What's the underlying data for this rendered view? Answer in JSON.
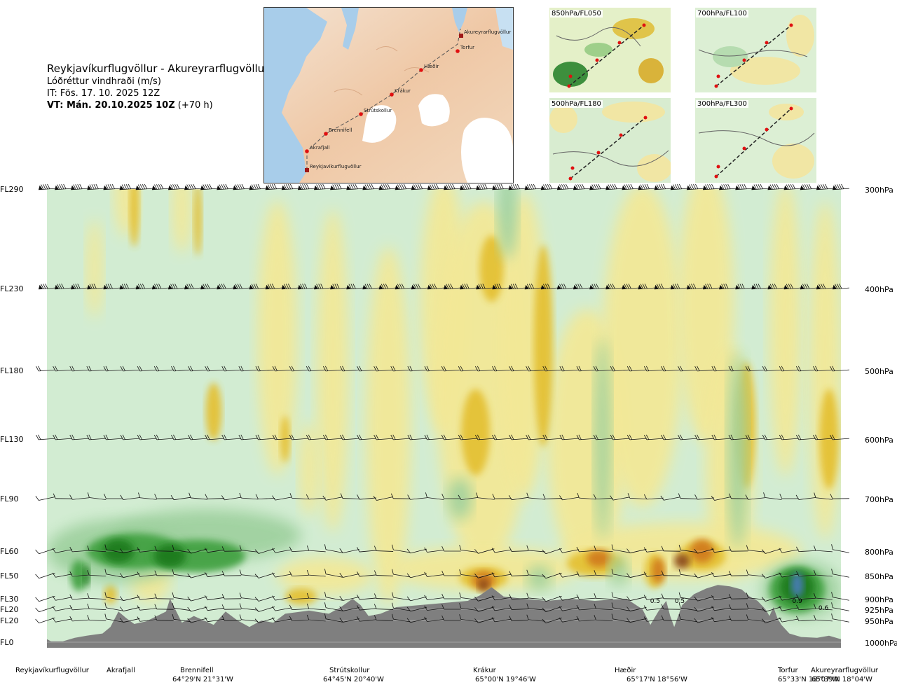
{
  "header": {
    "route": "Reykjavíkurflugvöllur - Akureyrarflugvöllur",
    "parameter": "Lóðréttur vindhraði (m/s)",
    "issue_time": "IT: Fös. 17. 10. 2025 12Z",
    "valid_time_bold": "VT: Mán. 20.10.2025 10Z",
    "valid_offset": "(+70 h)"
  },
  "route_map": {
    "waypoints": [
      {
        "label": "Akureyrarflugvöllur"
      },
      {
        "label": "Torfur"
      },
      {
        "label": "Hæðir"
      },
      {
        "label": "Krákur"
      },
      {
        "label": "Strútskollur"
      },
      {
        "label": "Brennifell"
      },
      {
        "label": "Akrafjall"
      },
      {
        "label": "Reykjavíkurflugvöllur"
      }
    ]
  },
  "level_maps": [
    {
      "label": "850hPa/FL050"
    },
    {
      "label": "700hPa/FL100"
    },
    {
      "label": "500hPa/FL180"
    },
    {
      "label": "300hPa/FL300"
    }
  ],
  "chart_data": {
    "type": "heatmap",
    "title": "Lóðréttur vindhraði (m/s)",
    "colors": {
      "strong_up": "#8a4a1e",
      "up_3": "#d07a1c",
      "up_2": "#e4c030",
      "up_1": "#f3e896",
      "neutral": "#d2ecd2",
      "down_1": "#9ed09e",
      "down_2": "#40a040",
      "down_3": "#1a7a1a",
      "strong_down": "#4a7cba",
      "terrain": "#7f7f7f"
    },
    "flight_levels": [
      {
        "fl": "FL290",
        "hpa": "300hPa",
        "pressure": 300
      },
      {
        "fl": "FL230",
        "hpa": "400hPa",
        "pressure": 400
      },
      {
        "fl": "FL180",
        "hpa": "500hPa",
        "pressure": 500
      },
      {
        "fl": "FL130",
        "hpa": "600hPa",
        "pressure": 600
      },
      {
        "fl": "FL90",
        "hpa": "700hPa",
        "pressure": 700
      },
      {
        "fl": "FL60",
        "hpa": "800hPa",
        "pressure": 800
      },
      {
        "fl": "FL50",
        "hpa": "850hPa",
        "pressure": 850
      },
      {
        "fl": "FL30",
        "hpa": "900hPa",
        "pressure": 900
      },
      {
        "fl": "FL20",
        "hpa": "925hPa",
        "pressure": 925
      },
      {
        "fl": "FL20",
        "hpa": "950hPa",
        "pressure": 950
      },
      {
        "fl": "FL0",
        "hpa": "1000hPa",
        "pressure": 1000
      }
    ],
    "x_waypoints": [
      {
        "name": "Reykjavíkurflugvöllur",
        "coord": "",
        "dist": 0.0
      },
      {
        "name": "Akrafjall",
        "coord": "",
        "dist": 0.09
      },
      {
        "name": "Brennifell",
        "coord": "64°29'N 21°31'W",
        "dist": 0.18
      },
      {
        "name": "Strútskollur",
        "coord": "64°45'N 20°40'W",
        "dist": 0.385
      },
      {
        "name": "Krákur",
        "coord": "65°00'N 19°46'W",
        "dist": 0.56
      },
      {
        "name": "Hæðir",
        "coord": "65°17'N 18°56'W",
        "dist": 0.735
      },
      {
        "name": "Torfur",
        "coord": "65°33'N 18°07'W",
        "dist": 0.935
      },
      {
        "name": "Akureyrarflugvöllur",
        "coord": "65°39'N 18°04'W",
        "dist": 1.0
      }
    ],
    "contour_labels": [
      {
        "text": "0.5",
        "dist": 0.766,
        "pressure": 903
      },
      {
        "text": "0.5",
        "dist": 0.797,
        "pressure": 903
      },
      {
        "text": "0.9",
        "dist": 0.945,
        "pressure": 903
      },
      {
        "text": "0.6",
        "dist": 0.978,
        "pressure": 920
      }
    ]
  }
}
